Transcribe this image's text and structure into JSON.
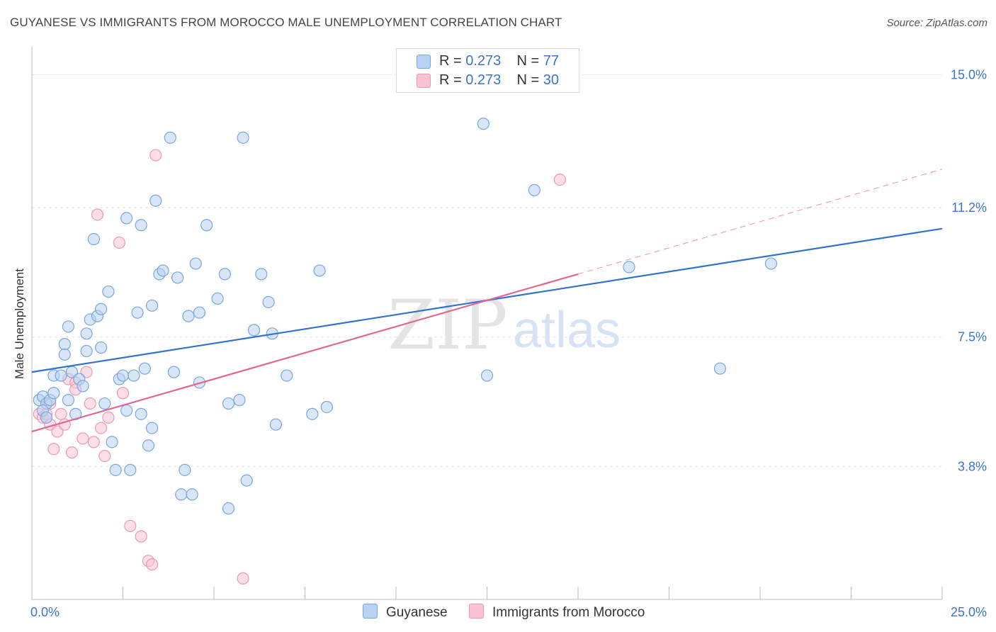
{
  "title": "GUYANESE VS IMMIGRANTS FROM MOROCCO MALE UNEMPLOYMENT CORRELATION CHART",
  "source": "Source: ZipAtlas.com",
  "watermark": {
    "zip": "ZIP",
    "atlas": "atlas"
  },
  "legend": {
    "series1": {
      "r_label": "R = ",
      "r_value": "0.273",
      "n_label": "N = ",
      "n_value": "77"
    },
    "series2": {
      "r_label": "R = ",
      "r_value": "0.273",
      "n_label": "N = ",
      "n_value": "30"
    }
  },
  "colors": {
    "blue_fill": "#b8d2f3",
    "blue_stroke": "#7aa6dc",
    "blue_line": "#3174cc",
    "pink_fill": "#f8c3d3",
    "pink_stroke": "#e99ab3",
    "pink_line": "#e06792",
    "axis_text": "#3a74c9",
    "grid": "#e2e2e2"
  },
  "chart_data": {
    "type": "scatter",
    "title": "GUYANESE VS IMMIGRANTS FROM MOROCCO MALE UNEMPLOYMENT CORRELATION CHART",
    "xlabel": "",
    "ylabel": "Male Unemployment",
    "xlim": [
      0,
      25
    ],
    "ylim": [
      0,
      15.8
    ],
    "x_tick_labels": [
      {
        "value": 0,
        "label": "0.0%"
      },
      {
        "value": 25,
        "label": "25.0%"
      }
    ],
    "y_tick_labels": [
      {
        "value": 3.8,
        "label": "3.8%"
      },
      {
        "value": 7.5,
        "label": "7.5%"
      },
      {
        "value": 11.2,
        "label": "11.2%"
      },
      {
        "value": 15.0,
        "label": "15.0%"
      }
    ],
    "x_minor_ticks": [
      2.5,
      5,
      7.5,
      10,
      12.5,
      15,
      17.5,
      20,
      22.5,
      25
    ],
    "grid": true,
    "legend_position": "top-center",
    "series": [
      {
        "name": "Guyanese",
        "r": 0.273,
        "n": 77,
        "trend": {
          "x": [
            0,
            25
          ],
          "y": [
            6.5,
            10.6
          ]
        },
        "points": [
          [
            0.2,
            5.7
          ],
          [
            0.3,
            5.8
          ],
          [
            0.4,
            5.6
          ],
          [
            0.3,
            5.4
          ],
          [
            0.5,
            5.7
          ],
          [
            0.6,
            5.9
          ],
          [
            0.6,
            6.4
          ],
          [
            0.8,
            6.4
          ],
          [
            0.9,
            7.3
          ],
          [
            0.9,
            7.0
          ],
          [
            1.0,
            7.8
          ],
          [
            1.0,
            5.7
          ],
          [
            1.1,
            6.5
          ],
          [
            1.2,
            5.3
          ],
          [
            1.3,
            6.3
          ],
          [
            1.4,
            6.1
          ],
          [
            1.5,
            7.6
          ],
          [
            1.5,
            7.1
          ],
          [
            1.6,
            8.0
          ],
          [
            1.7,
            10.3
          ],
          [
            1.8,
            8.1
          ],
          [
            1.9,
            7.2
          ],
          [
            1.9,
            8.3
          ],
          [
            2.0,
            5.6
          ],
          [
            2.1,
            8.8
          ],
          [
            2.2,
            4.5
          ],
          [
            2.3,
            3.7
          ],
          [
            2.4,
            6.3
          ],
          [
            2.5,
            6.4
          ],
          [
            2.6,
            5.4
          ],
          [
            2.6,
            10.9
          ],
          [
            2.7,
            3.7
          ],
          [
            2.8,
            6.4
          ],
          [
            2.9,
            8.2
          ],
          [
            3.0,
            10.7
          ],
          [
            3.0,
            5.3
          ],
          [
            3.1,
            6.6
          ],
          [
            3.2,
            4.4
          ],
          [
            3.3,
            8.4
          ],
          [
            3.3,
            4.9
          ],
          [
            3.4,
            11.4
          ],
          [
            3.5,
            9.3
          ],
          [
            3.6,
            9.4
          ],
          [
            3.8,
            13.2
          ],
          [
            3.9,
            6.5
          ],
          [
            4.0,
            9.2
          ],
          [
            4.1,
            3.0
          ],
          [
            4.2,
            3.7
          ],
          [
            4.3,
            8.1
          ],
          [
            4.4,
            3.0
          ],
          [
            4.5,
            9.6
          ],
          [
            4.6,
            6.2
          ],
          [
            4.6,
            8.2
          ],
          [
            4.8,
            10.7
          ],
          [
            5.1,
            8.6
          ],
          [
            5.3,
            9.3
          ],
          [
            5.4,
            5.6
          ],
          [
            5.4,
            2.6
          ],
          [
            5.7,
            5.7
          ],
          [
            5.8,
            13.2
          ],
          [
            5.9,
            3.4
          ],
          [
            6.1,
            7.7
          ],
          [
            6.3,
            9.3
          ],
          [
            6.5,
            8.5
          ],
          [
            6.6,
            7.6
          ],
          [
            6.7,
            5.0
          ],
          [
            7.0,
            6.4
          ],
          [
            7.7,
            5.3
          ],
          [
            7.9,
            9.4
          ],
          [
            8.1,
            5.5
          ],
          [
            12.4,
            13.6
          ],
          [
            12.5,
            6.4
          ],
          [
            13.8,
            11.7
          ],
          [
            16.4,
            9.5
          ],
          [
            18.9,
            6.6
          ],
          [
            20.3,
            9.6
          ],
          [
            0.4,
            5.2
          ]
        ]
      },
      {
        "name": "Immigrants from Morocco",
        "r": 0.273,
        "n": 30,
        "trend": {
          "x": [
            0,
            15
          ],
          "y": [
            4.8,
            9.3
          ]
        },
        "trend_extension": {
          "x": [
            15,
            25
          ],
          "y": [
            9.3,
            12.3
          ]
        },
        "points": [
          [
            0.2,
            5.3
          ],
          [
            0.3,
            5.2
          ],
          [
            0.4,
            5.3
          ],
          [
            0.5,
            5.0
          ],
          [
            0.5,
            5.6
          ],
          [
            0.6,
            4.3
          ],
          [
            0.7,
            4.8
          ],
          [
            0.8,
            5.3
          ],
          [
            0.9,
            5.0
          ],
          [
            1.0,
            6.3
          ],
          [
            1.1,
            4.2
          ],
          [
            1.2,
            6.2
          ],
          [
            1.2,
            6.0
          ],
          [
            1.4,
            4.6
          ],
          [
            1.5,
            6.5
          ],
          [
            1.6,
            5.6
          ],
          [
            1.7,
            4.5
          ],
          [
            1.8,
            11.0
          ],
          [
            1.9,
            4.9
          ],
          [
            2.0,
            4.1
          ],
          [
            2.1,
            5.2
          ],
          [
            2.4,
            10.2
          ],
          [
            2.5,
            5.9
          ],
          [
            2.7,
            2.1
          ],
          [
            3.0,
            1.8
          ],
          [
            3.2,
            1.1
          ],
          [
            3.3,
            1.0
          ],
          [
            3.4,
            12.7
          ],
          [
            5.8,
            0.6
          ],
          [
            14.5,
            12.0
          ]
        ]
      }
    ]
  }
}
